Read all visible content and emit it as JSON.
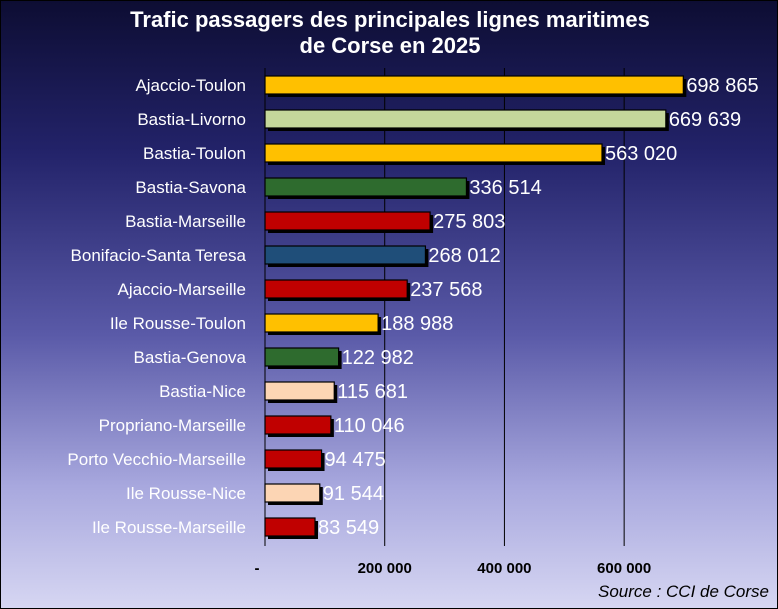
{
  "chart_data": {
    "type": "bar",
    "orientation": "horizontal",
    "title": "Trafic passagers des principales lignes maritimes de Corse en 2025",
    "title_lines": [
      "Trafic passagers des principales lignes maritimes",
      "de Corse en 2025"
    ],
    "categories": [
      "Ajaccio-Toulon",
      "Bastia-Livorno",
      "Bastia-Toulon",
      "Bastia-Savona",
      "Bastia-Marseille",
      "Bonifacio-Santa Teresa",
      "Ajaccio-Marseille",
      "Ile Rousse-Toulon",
      "Bastia-Genova",
      "Bastia-Nice",
      "Propriano-Marseille",
      "Porto Vecchio-Marseille",
      "Ile Rousse-Nice",
      "Ile Rousse-Marseille"
    ],
    "values": [
      698865,
      669639,
      563020,
      336514,
      275803,
      268012,
      237568,
      188988,
      122982,
      115681,
      110046,
      94475,
      91544,
      83549
    ],
    "value_labels": [
      "698 865",
      "669 639",
      "563 020",
      "336 514",
      "275 803",
      "268 012",
      "237 568",
      "188 988",
      "122 982",
      "115 681",
      "110 046",
      "94 475",
      "91 544",
      "83 549"
    ],
    "bar_colors": [
      "#ffc000",
      "#c4d79b",
      "#ffc000",
      "#2e6b2e",
      "#c00000",
      "#1f4e79",
      "#c00000",
      "#ffc000",
      "#2e6b2e",
      "#fcd5b4",
      "#c00000",
      "#c00000",
      "#fcd5b4",
      "#c00000"
    ],
    "xlim": [
      0,
      700000
    ],
    "xticks": [
      0,
      200000,
      400000,
      600000
    ],
    "xtick_labels": [
      "-",
      "200 000",
      "400 000",
      "600 000"
    ],
    "xlabel": "",
    "ylabel": "",
    "grid": "vertical",
    "source": "Source : CCI de Corse"
  }
}
